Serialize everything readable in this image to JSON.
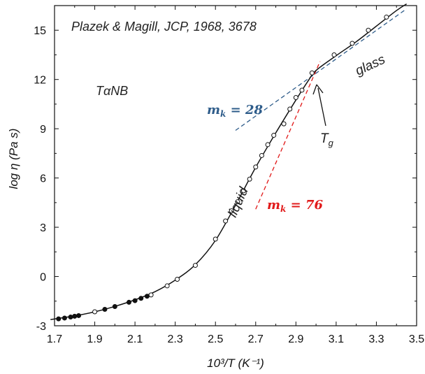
{
  "chart_data": {
    "type": "line",
    "xlabel": "10³/T (K⁻¹)",
    "ylabel": "log η (Pa s)",
    "xlim": [
      1.7,
      3.5
    ],
    "ylim": [
      -3,
      16.5
    ],
    "xticks": [
      1.7,
      1.9,
      2.1,
      2.3,
      2.5,
      2.7,
      2.9,
      3.1,
      3.3,
      3.5
    ],
    "yticks": [
      -3,
      0,
      3,
      6,
      9,
      12,
      15
    ],
    "grid": false,
    "series": [
      {
        "marker": "filled-circle",
        "points": [
          [
            1.72,
            -2.58
          ],
          [
            1.75,
            -2.53
          ],
          [
            1.78,
            -2.47
          ],
          [
            1.8,
            -2.42
          ],
          [
            1.82,
            -2.38
          ],
          [
            1.95,
            -2.0
          ],
          [
            2.0,
            -1.83
          ],
          [
            2.07,
            -1.57
          ],
          [
            2.1,
            -1.47
          ],
          [
            2.13,
            -1.33
          ],
          [
            2.16,
            -1.2
          ]
        ]
      },
      {
        "marker": "open-circle",
        "points": [
          [
            1.9,
            -2.15
          ],
          [
            2.18,
            -1.12
          ],
          [
            2.26,
            -0.57
          ],
          [
            2.31,
            -0.17
          ],
          [
            2.4,
            0.68
          ],
          [
            2.5,
            2.28
          ],
          [
            2.55,
            3.38
          ],
          [
            2.58,
            4.0
          ],
          [
            2.61,
            4.55
          ],
          [
            2.64,
            5.22
          ],
          [
            2.67,
            5.93
          ],
          [
            2.7,
            6.67
          ],
          [
            2.73,
            7.37
          ],
          [
            2.76,
            8.03
          ],
          [
            2.79,
            8.6
          ],
          [
            2.84,
            9.3
          ],
          [
            2.87,
            10.2
          ],
          [
            2.9,
            10.9
          ],
          [
            2.93,
            11.35
          ],
          [
            2.98,
            12.4
          ],
          [
            3.09,
            13.5
          ],
          [
            3.18,
            14.2
          ],
          [
            3.26,
            15.0
          ],
          [
            3.35,
            15.8
          ]
        ]
      }
    ],
    "fit_curve": [
      [
        1.68,
        -2.62
      ],
      [
        1.8,
        -2.4
      ],
      [
        1.9,
        -2.15
      ],
      [
        2.0,
        -1.82
      ],
      [
        2.1,
        -1.42
      ],
      [
        2.2,
        -0.92
      ],
      [
        2.3,
        -0.22
      ],
      [
        2.4,
        0.72
      ],
      [
        2.5,
        2.2
      ],
      [
        2.6,
        4.35
      ],
      [
        2.7,
        6.65
      ],
      [
        2.8,
        8.75
      ],
      [
        2.9,
        10.75
      ],
      [
        2.96,
        11.9
      ],
      [
        3.0,
        12.55
      ],
      [
        3.1,
        13.45
      ],
      [
        3.2,
        14.3
      ],
      [
        3.3,
        15.25
      ],
      [
        3.4,
        16.2
      ],
      [
        3.45,
        16.6
      ]
    ],
    "fragility_lines": [
      {
        "label_main": "m",
        "label_sub": "k",
        "label_rest": " = 28",
        "color": "#2e5c8a",
        "from": [
          2.6,
          8.9
        ],
        "to": [
          3.45,
          16.3
        ]
      },
      {
        "label_main": "m",
        "label_sub": "k",
        "label_rest": " = 76",
        "color": "#e11919",
        "from": [
          2.7,
          4.1
        ],
        "to": [
          3.02,
          13.1
        ]
      }
    ],
    "annotations": {
      "citation": "Plazek & Magill, JCP, 1968, 3678",
      "material_pre": "T",
      "material_alpha": "α",
      "material_post": "NB",
      "liquid": "liquid",
      "glass": "glass",
      "tg_main": "T",
      "tg_sub": "g"
    }
  }
}
